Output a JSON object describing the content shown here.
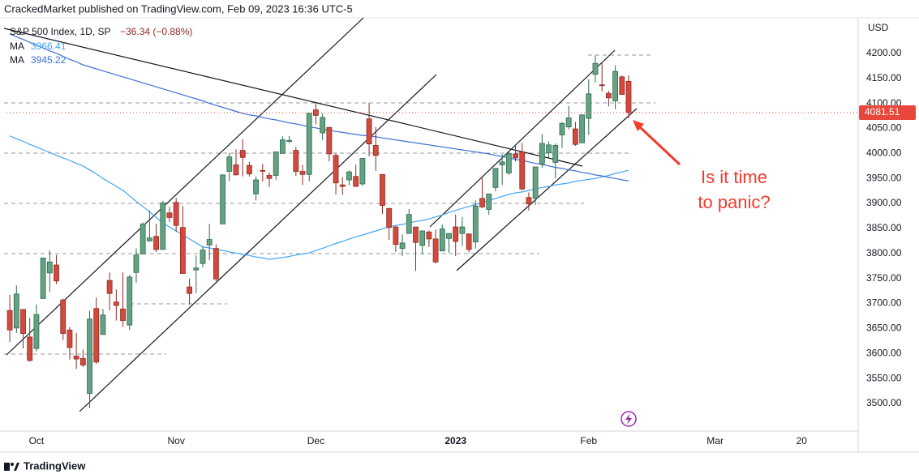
{
  "chart_data": {
    "type": "candlestick",
    "header": "CrackedMarket published on TradingView.com, Feb 09, 2023 16:36 UTC-5",
    "footer": "TradingView",
    "currency": "USD",
    "change": "−36.34 (−0.88%)",
    "annotation": "Is it time to panic?",
    "categories": [
      null,
      null,
      null,
      null,
      "Oct",
      null,
      null,
      null,
      null,
      null,
      null,
      null,
      null,
      null,
      null,
      null,
      null,
      null,
      null,
      null,
      null,
      null,
      null,
      null,
      null,
      "Nov",
      null,
      null,
      null,
      null,
      null,
      null,
      null,
      null,
      null,
      null,
      null,
      null,
      null,
      null,
      null,
      null,
      null,
      null,
      null,
      null,
      "Dec",
      null,
      null,
      null,
      null,
      null,
      null,
      null,
      null,
      null,
      null,
      null,
      null,
      null,
      null,
      null,
      null,
      null,
      null,
      null,
      null,
      "2023",
      null,
      null,
      null,
      null,
      null,
      null,
      null,
      null,
      null,
      null,
      null,
      null,
      null,
      null,
      null,
      null,
      null,
      null,
      null,
      "Feb",
      null,
      null,
      null,
      null,
      null,
      null,
      null,
      null,
      null,
      null,
      null,
      null,
      null,
      null,
      null,
      null,
      null,
      null,
      "Mar",
      null,
      null,
      null,
      null,
      null,
      null,
      null,
      null,
      null,
      null,
      null,
      null,
      "20",
      null,
      null,
      null,
      null,
      null,
      null,
      null,
      null
    ],
    "series": [
      {
        "name": "S&P 500 Index, 1D, SP",
        "up_color": "#64a283",
        "down_color": "#d4493d",
        "open": [
          3686,
          3651,
          3688,
          3633,
          3610,
          3710,
          3761,
          3777,
          3707,
          3647,
          3595,
          3590,
          3520,
          3690,
          3638,
          3746,
          3703,
          3689,
          3657,
          3762,
          3799,
          3825,
          3834,
          3808,
          3881,
          3902,
          3852,
          3733,
          3767,
          3780,
          3817,
          3810,
          3859,
          3964,
          3977,
          4006,
          3976,
          3919,
          3966,
          3956,
          3956,
          4000,
          4024,
          4006,
          3964,
          3958,
          4087,
          4041,
          4052,
          3996,
          3937,
          3947,
          3954,
          3939,
          4069,
          4016,
          3958,
          3890,
          3853,
          3810,
          3840,
          3853,
          3816,
          3843,
          3829,
          3805,
          3830,
          3853,
          3840,
          3839,
          3823,
          3910,
          3888,
          3932,
          3977,
          3961,
          3999,
          4003,
          3912,
          3910,
          3979,
          4001,
          3982,
          4037,
          4053,
          4049,
          4021,
          4070,
          4158,
          4137,
          4120,
          4105,
          4153,
          4144,
          null,
          null,
          null,
          null,
          null,
          null,
          null,
          null,
          null,
          null,
          null,
          null,
          null,
          null,
          null,
          null,
          null,
          null,
          null,
          null,
          null,
          null,
          null,
          null,
          null,
          null,
          null,
          null,
          null,
          null,
          null,
          null,
          null,
          null
        ],
        "high": [
          3717,
          3736,
          3688,
          3671,
          3698,
          3791,
          3806,
          3797,
          3710,
          3653,
          3641,
          3608,
          3685,
          3712,
          3689,
          3762,
          3728,
          3762,
          3757,
          3810,
          3862,
          3886,
          3859,
          3905,
          3893,
          3911,
          3895,
          3750,
          3796,
          3814,
          3859,
          3818,
          3958,
          4001,
          4008,
          4028,
          3983,
          3954,
          3979,
          3962,
          4004,
          4034,
          4035,
          4013,
          3977,
          4080,
          4101,
          4080,
          4053,
          4001,
          3952,
          3966,
          3978,
          3990,
          4101,
          4053,
          3958,
          3891,
          3855,
          3838,
          3889,
          3853,
          3846,
          3846,
          3848,
          3858,
          3839,
          3878,
          3873,
          3840,
          3906,
          3951,
          3919,
          3970,
          3998,
          4004,
          4015,
          4021,
          3922,
          3973,
          4039,
          4024,
          4020,
          4063,
          4095,
          4063,
          4078,
          4148,
          4196,
          4183,
          4125,
          4176,
          4156,
          4156,
          null,
          null,
          null,
          null,
          null,
          null,
          null,
          null,
          null,
          null,
          null,
          null,
          null,
          null,
          null,
          null,
          null,
          null,
          null,
          null,
          null,
          null,
          null,
          null,
          null,
          null,
          null,
          null,
          null,
          null,
          null,
          null,
          null,
          null
        ],
        "low": [
          3623,
          3641,
          3610,
          3584,
          3604,
          3710,
          3723,
          3739,
          3627,
          3588,
          3569,
          3573,
          3491,
          3579,
          3638,
          3686,
          3666,
          3653,
          3647,
          3741,
          3799,
          3824,
          3803,
          3808,
          3863,
          3843,
          3759,
          3698,
          3721,
          3772,
          3786,
          3744,
          3859,
          3944,
          3957,
          3954,
          3954,
          3906,
          3944,
          3933,
          3947,
          3999,
          4020,
          3955,
          3937,
          3944,
          4058,
          4027,
          3984,
          3918,
          3917,
          3936,
          3934,
          3935,
          3994,
          3965,
          3879,
          3827,
          3803,
          3795,
          3840,
          3765,
          3798,
          3813,
          3780,
          3805,
          3801,
          3795,
          3815,
          3802,
          3810,
          3890,
          3877,
          3924,
          3937,
          3957,
          3984,
          3926,
          3886,
          3897,
          3971,
          3990,
          3950,
          4011,
          4048,
          4015,
          4021,
          4037,
          4142,
          4124,
          4094,
          4088,
          4117,
          4070,
          null,
          null,
          null,
          null,
          null,
          null,
          null,
          null,
          null,
          null,
          null,
          null,
          null,
          null,
          null,
          null,
          null,
          null,
          null,
          null,
          null,
          null,
          null,
          null,
          null,
          null,
          null,
          null,
          null,
          null,
          null,
          null,
          null,
          null
        ],
        "close": [
          3647,
          3719,
          3640,
          3586,
          3678,
          3791,
          3783,
          3745,
          3640,
          3612,
          3589,
          3577,
          3669,
          3583,
          3677,
          3720,
          3696,
          3666,
          3753,
          3797,
          3859,
          3831,
          3808,
          3901,
          3872,
          3856,
          3760,
          3720,
          3771,
          3807,
          3828,
          3749,
          3957,
          3993,
          3957,
          3992,
          3959,
          3947,
          3965,
          3950,
          4003,
          4027,
          4026,
          3964,
          3958,
          4080,
          4076,
          4072,
          3999,
          3941,
          3934,
          3963,
          3934,
          3990,
          4019,
          3996,
          3896,
          3852,
          3818,
          3821,
          3878,
          3822,
          3845,
          3829,
          3783,
          3849,
          3840,
          3824,
          3853,
          3808,
          3895,
          3893,
          3919,
          3970,
          3983,
          3999,
          3991,
          3929,
          3899,
          3973,
          4020,
          4017,
          4016,
          4060,
          4071,
          4018,
          4077,
          4119,
          4180,
          4136,
          4111,
          4164,
          4118,
          4081.51,
          null,
          null,
          null,
          null,
          null,
          null,
          null,
          null,
          null,
          null,
          null,
          null,
          null,
          null,
          null,
          null,
          null,
          null,
          null,
          null,
          null,
          null,
          null,
          null,
          null,
          null,
          null,
          null,
          null,
          null,
          null,
          null,
          null,
          null
        ]
      },
      {
        "name": "MA",
        "color": "#42a5f5",
        "values": [
          4035,
          4029,
          4024,
          4018,
          4013,
          4007,
          4002,
          3996,
          3991,
          3986,
          3980,
          3975,
          3967,
          3959,
          3950,
          3942,
          3934,
          3926,
          3915,
          3904,
          3894,
          3883,
          3872,
          3861,
          3853,
          3845,
          3837,
          3829,
          3821,
          3813,
          3811,
          3808,
          3806,
          3803,
          3801,
          3798,
          3796,
          3793,
          3791,
          3788,
          3790,
          3792,
          3794,
          3797,
          3799,
          3801,
          3806,
          3810,
          3815,
          3820,
          3824,
          3829,
          3833,
          3837,
          3841,
          3845,
          3849,
          3853,
          3856,
          3858,
          3861,
          3864,
          3866,
          3869,
          3873,
          3877,
          3882,
          3886,
          3890,
          3894,
          3898,
          3902,
          3906,
          3910,
          3914,
          3918,
          3921,
          3923,
          3926,
          3929,
          3932,
          3934,
          3937,
          3939,
          3941,
          3944,
          3946,
          3948,
          3950,
          3953,
          3956,
          3960,
          3963,
          3966.41,
          null,
          null,
          null,
          null,
          null,
          null,
          null,
          null,
          null,
          null,
          null,
          null,
          null,
          null,
          null,
          null,
          null,
          null,
          null,
          null,
          null,
          null,
          null,
          null,
          null,
          null,
          null,
          null,
          null,
          null,
          null,
          null,
          null,
          null
        ]
      },
      {
        "name": "MA",
        "color": "#3d6fd6",
        "values": [
          4239,
          4233,
          4228,
          4222,
          4216,
          4211,
          4205,
          4200,
          4194,
          4188,
          4183,
          4177,
          4173,
          4169,
          4165,
          4161,
          4157,
          4153,
          4149,
          4145,
          4141,
          4137,
          4133,
          4129,
          4125,
          4121,
          4117,
          4113,
          4109,
          4105,
          4100,
          4096,
          4092,
          4088,
          4084,
          4080,
          4077,
          4075,
          4072,
          4069,
          4067,
          4064,
          4061,
          4059,
          4056,
          4053,
          4051,
          4048,
          4046,
          4044,
          4042,
          4040,
          4038,
          4036,
          4035,
          4033,
          4031,
          4029,
          4027,
          4025,
          4023,
          4021,
          4019,
          4017,
          4015,
          4013,
          4011,
          4009,
          4007,
          4005,
          4003,
          4001,
          3999,
          3996,
          3994,
          3991,
          3988,
          3986,
          3983,
          3980,
          3978,
          3975,
          3972,
          3970,
          3967,
          3965,
          3962,
          3960,
          3957,
          3955,
          3952,
          3950,
          3947,
          3945.22,
          null,
          null,
          null,
          null,
          null,
          null,
          null,
          null,
          null,
          null,
          null,
          null,
          null,
          null,
          null,
          null,
          null,
          null,
          null,
          null,
          null,
          null,
          null,
          null,
          null,
          null,
          null,
          null,
          null,
          null,
          null,
          null,
          null,
          null
        ]
      }
    ],
    "ylim": [
      3445,
      4271
    ],
    "yticks": [
      {
        "value": 3500,
        "label": "3500.00"
      },
      {
        "value": 3550,
        "label": "3550.00"
      },
      {
        "value": 3600,
        "label": "3600.00"
      },
      {
        "value": 3650,
        "label": "3650.00"
      },
      {
        "value": 3700,
        "label": "3700.00"
      },
      {
        "value": 3750,
        "label": "3750.00"
      },
      {
        "value": 3800,
        "label": "3800.00"
      },
      {
        "value": 3850,
        "label": "3850.00"
      },
      {
        "value": 3900,
        "label": "3900.00"
      },
      {
        "value": 3950,
        "label": "3950.00"
      },
      {
        "value": 4000,
        "label": "4000.00"
      },
      {
        "value": 4050,
        "label": "4050.00"
      },
      {
        "value": 4100,
        "label": "4100.00"
      },
      {
        "value": 4150,
        "label": "4150.00"
      },
      {
        "value": 4200,
        "label": "4200.00"
      }
    ],
    "grid": false
  }
}
